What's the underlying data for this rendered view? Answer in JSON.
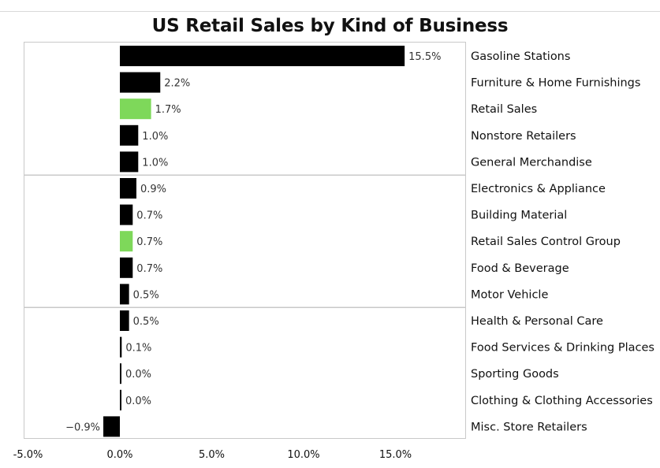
{
  "chart_data": {
    "type": "bar",
    "orientation": "horizontal",
    "title": "US Retail Sales by Kind of Business",
    "categories": [
      "Gasoline Stations",
      "Furniture & Home Furnishings",
      "Retail Sales",
      "Nonstore Retailers",
      "General Merchandise",
      "Electronics & Appliance",
      "Building Material",
      "Retail Sales Control Group",
      "Food & Beverage",
      "Motor Vehicle",
      "Health & Personal Care",
      "Food Services & Drinking Places",
      "Sporting Goods",
      "Clothing & Clothing Accessories",
      "Misc. Store Retailers"
    ],
    "values": [
      15.5,
      2.2,
      1.7,
      1.0,
      1.0,
      0.9,
      0.7,
      0.7,
      0.7,
      0.5,
      0.5,
      0.1,
      0.0,
      0.0,
      -0.9
    ],
    "value_labels": [
      "15.5%",
      "2.2%",
      "1.7%",
      "1.0%",
      "1.0%",
      "0.9%",
      "0.7%",
      "0.7%",
      "0.7%",
      "0.5%",
      "0.5%",
      "0.1%",
      "0.0%",
      "0.0%",
      "−0.9%"
    ],
    "highlighted": [
      "Retail Sales",
      "Retail Sales Control Group"
    ],
    "xlim": [
      -5.0,
      19.0
    ],
    "x_ticks": [
      -5.0,
      0.0,
      5.0,
      10.0,
      15.0
    ],
    "x_tick_labels": [
      "-5.0%",
      "0.0%",
      "5.0%",
      "10.0%",
      "15.0%"
    ],
    "group_separators_after": [
      4,
      9
    ],
    "xlabel": "",
    "ylabel": "",
    "colors": {
      "bar": "#000000",
      "highlight": "#7ed85a",
      "frame": "#c9c9c9"
    }
  }
}
